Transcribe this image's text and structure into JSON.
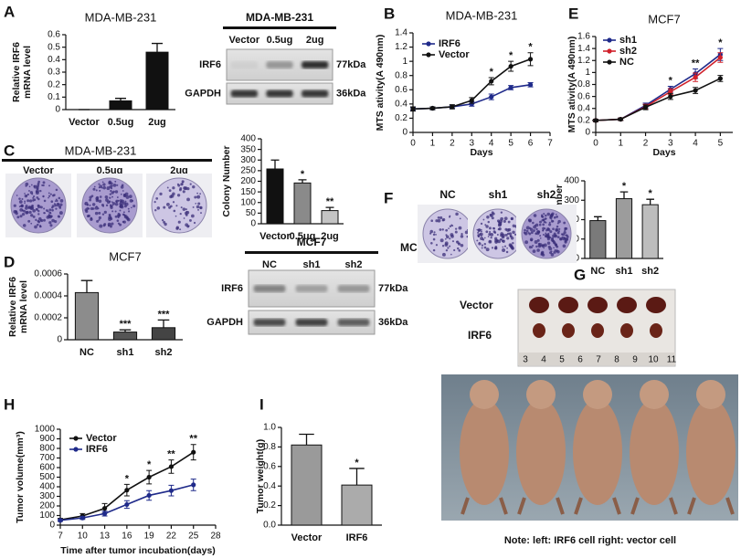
{
  "panel_labels": [
    "A",
    "B",
    "C",
    "D",
    "E",
    "F",
    "G",
    "H",
    "I"
  ],
  "chart_data": [
    {
      "type": "bar",
      "title": "MDA-MB-231",
      "ylabel": [
        "Relative IRF6",
        "mRNA level"
      ],
      "categories": [
        "Vector",
        "0.5ug",
        "2ug"
      ],
      "values": [
        0,
        0.07,
        0.46
      ],
      "errors": [
        0,
        0.02,
        0.07
      ],
      "colors": [
        "#111111",
        "#111111",
        "#111111"
      ],
      "ylim": [
        0,
        0.6
      ],
      "yticks": [
        0,
        0.1,
        0.2,
        0.3,
        0.4,
        0.5,
        0.6
      ]
    },
    {
      "type": "line",
      "title": "MDA-MB-231",
      "ylabel": "MTS ativity(A 490nm)",
      "xlabel": "Days",
      "x": [
        0,
        1,
        2,
        3,
        4,
        5,
        6
      ],
      "series": [
        {
          "name": "IRF6",
          "color": "#1f2a8a",
          "values": [
            0.33,
            0.34,
            0.36,
            0.4,
            0.5,
            0.63,
            0.67
          ],
          "errors": [
            0.02,
            0.02,
            0.02,
            0.03,
            0.04,
            0.03,
            0.03
          ]
        },
        {
          "name": "Vector",
          "color": "#111111",
          "values": [
            0.33,
            0.34,
            0.36,
            0.45,
            0.72,
            0.93,
            1.03
          ],
          "errors": [
            0.03,
            0.02,
            0.03,
            0.04,
            0.05,
            0.07,
            0.09
          ]
        }
      ],
      "annotations": [
        {
          "x": 4,
          "text": "*"
        },
        {
          "x": 5,
          "text": "*"
        },
        {
          "x": 6,
          "text": "*"
        }
      ],
      "xlim": [
        0,
        7
      ],
      "xticks": [
        0,
        1,
        2,
        3,
        4,
        5,
        6,
        7
      ],
      "ylim": [
        0,
        1.4
      ],
      "yticks": [
        0,
        0.2,
        0.4,
        0.6,
        0.8,
        1,
        1.2,
        1.4
      ]
    },
    {
      "type": "line",
      "title": "MCF7",
      "ylabel": "MTS ativity(A 490nm)",
      "xlabel": "Days",
      "x": [
        0,
        1,
        2,
        3,
        4,
        5
      ],
      "series": [
        {
          "name": "sh1",
          "color": "#1f2a8a",
          "values": [
            0.2,
            0.22,
            0.45,
            0.72,
            0.98,
            1.3
          ],
          "errors": [
            0.02,
            0.02,
            0.04,
            0.05,
            0.08,
            0.1
          ]
        },
        {
          "name": "sh2",
          "color": "#d0202a",
          "values": [
            0.2,
            0.22,
            0.43,
            0.68,
            0.92,
            1.25
          ],
          "errors": [
            0.02,
            0.02,
            0.04,
            0.05,
            0.07,
            0.08
          ]
        },
        {
          "name": "NC",
          "color": "#111111",
          "values": [
            0.2,
            0.22,
            0.42,
            0.6,
            0.7,
            0.9
          ],
          "errors": [
            0.02,
            0.02,
            0.04,
            0.05,
            0.05,
            0.05
          ]
        }
      ],
      "annotations": [
        {
          "x": 3,
          "text": "*"
        },
        {
          "x": 4,
          "text": "**"
        },
        {
          "x": 5,
          "text": "*"
        }
      ],
      "xlim": [
        0,
        5.5
      ],
      "xticks": [
        0,
        1,
        2,
        3,
        4,
        5
      ],
      "ylim": [
        0,
        1.6
      ],
      "yticks": [
        0,
        0.2,
        0.4,
        0.6,
        0.8,
        1,
        1.2,
        1.4,
        1.6
      ]
    },
    {
      "type": "bar",
      "ylabel": "Colony Number",
      "categories": [
        "Vector",
        "0.5ug",
        "2ug"
      ],
      "values": [
        258,
        192,
        62
      ],
      "errors": [
        42,
        15,
        15
      ],
      "stars": [
        null,
        "*",
        "**"
      ],
      "colors": [
        "#111111",
        "#8a8a8a",
        "#c4c4c4"
      ],
      "ylim": [
        0,
        400
      ],
      "yticks": [
        0,
        50,
        100,
        150,
        200,
        250,
        300,
        350,
        400
      ]
    },
    {
      "type": "bar",
      "title": "MCF7",
      "ylabel": [
        "Relative IRF6",
        "mRNA level"
      ],
      "categories": [
        "NC",
        "sh1",
        "sh2"
      ],
      "values": [
        0.00043,
        7e-05,
        0.00011
      ],
      "errors": [
        0.00011,
        2e-05,
        7e-05
      ],
      "stars": [
        null,
        "***",
        "***"
      ],
      "colors": [
        "#8c8c8c",
        "#555555",
        "#444444"
      ],
      "ylim": [
        0,
        0.0006
      ],
      "yticks": [
        0,
        0.0002,
        0.0004,
        0.0006
      ]
    },
    {
      "type": "bar",
      "ylabel": "Colony number",
      "categories": [
        "NC",
        "sh1",
        "sh2"
      ],
      "values": [
        195,
        308,
        277
      ],
      "errors": [
        20,
        35,
        28
      ],
      "stars": [
        null,
        "*",
        "*"
      ],
      "colors": [
        "#7a7a7a",
        "#9c9c9c",
        "#bdbdbd"
      ],
      "ylim": [
        0,
        400
      ],
      "yticks": [
        0,
        100,
        200,
        300,
        400
      ]
    },
    {
      "type": "line",
      "ylabel": "Tumor volume(mm³)",
      "xlabel": "Time after tumor incubation(days)",
      "x": [
        7,
        10,
        13,
        16,
        19,
        22,
        25
      ],
      "series": [
        {
          "name": "Vector",
          "color": "#111111",
          "values": [
            55,
            95,
            175,
            365,
            500,
            610,
            760
          ],
          "errors": [
            15,
            25,
            50,
            60,
            70,
            70,
            80
          ]
        },
        {
          "name": "IRF6",
          "color": "#1f2a8a",
          "values": [
            50,
            75,
            120,
            215,
            310,
            360,
            420
          ],
          "errors": [
            10,
            15,
            25,
            40,
            50,
            55,
            60
          ]
        }
      ],
      "annotations": [
        {
          "x": 16,
          "text": "*"
        },
        {
          "x": 19,
          "text": "*"
        },
        {
          "x": 22,
          "text": "**"
        },
        {
          "x": 25,
          "text": "**"
        }
      ],
      "xlim": [
        7,
        28
      ],
      "xticks": [
        7,
        10,
        13,
        16,
        19,
        22,
        25,
        28
      ],
      "ylim": [
        0,
        1000
      ],
      "yticks": [
        0,
        100,
        200,
        300,
        400,
        500,
        600,
        700,
        800,
        900,
        1000
      ]
    },
    {
      "type": "bar",
      "ylabel": "Tumor weight(g)",
      "categories": [
        "Vector",
        "IRF6"
      ],
      "values": [
        0.82,
        0.41
      ],
      "errors": [
        0.11,
        0.17
      ],
      "stars": [
        null,
        "*"
      ],
      "colors": [
        "#9a9a9a",
        "#ababab"
      ],
      "ylim": [
        0,
        1
      ],
      "yticks": [
        {
          "value": 0,
          "label": "0.0"
        },
        0.2,
        0.4,
        0.6,
        0.8,
        {
          "value": 1,
          "label": "1.0"
        }
      ]
    }
  ],
  "blots": [
    {
      "title": "MDA-MB-231",
      "lanes": [
        "Vector",
        "0.5ug",
        "2ug"
      ],
      "rows": [
        "IRF6",
        "GAPDH"
      ],
      "sizes": [
        "77kDa",
        "36kDa"
      ]
    },
    {
      "title": "MCF7",
      "lanes": [
        "NC",
        "sh1",
        "sh2"
      ],
      "rows": [
        "IRF6",
        "GAPDH"
      ],
      "sizes": [
        "77kDa",
        "36kDa"
      ]
    }
  ],
  "colonies": [
    {
      "title": "MDA-MB-231",
      "lanes": [
        "Vector",
        "0.5ug",
        "2ug"
      ]
    },
    {
      "cell": "MCF7",
      "lanes": [
        "NC",
        "sh1",
        "sh2"
      ]
    }
  ],
  "xenograft": {
    "rows": [
      "Vector",
      "IRF6"
    ],
    "ruler": [
      "3",
      "4",
      "5",
      "6",
      "7",
      "8",
      "9",
      "10",
      "11"
    ],
    "caption": "Note: left:  IRF6 cell  right: vector cell"
  }
}
